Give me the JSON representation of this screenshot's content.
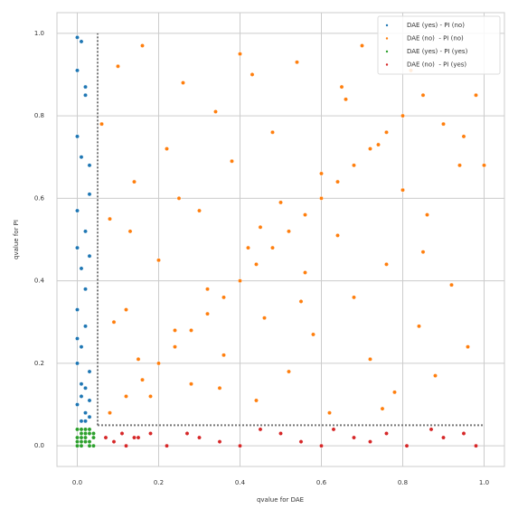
{
  "chart_data": {
    "type": "scatter",
    "xlabel": "qvalue for DAE",
    "ylabel": "qvalue for PI",
    "xlim": [
      -0.05,
      1.05
    ],
    "ylim": [
      -0.05,
      1.05
    ],
    "xticks": [
      {
        "value": 0,
        "label": "0.0"
      },
      0.2,
      0.4,
      0.6,
      0.8,
      {
        "value": 1,
        "label": "1.0"
      }
    ],
    "yticks": [
      {
        "value": 0,
        "label": "0.0"
      },
      0.2,
      0.4,
      0.6,
      0.8,
      {
        "value": 1,
        "label": "1.0"
      }
    ],
    "grid": true,
    "legend": "upper right",
    "threshold": 0.05,
    "series": [
      {
        "name": "DAE (yes) - PI (no)",
        "color": "#1f77b4",
        "x": [
          0.0,
          0.01,
          0.02,
          0.03,
          0.0,
          0.02,
          0.01,
          0.03,
          0.0,
          0.0,
          0.02,
          0.01,
          0.03,
          0.0,
          0.02,
          0.01,
          0.0,
          0.03,
          0.02,
          0.01,
          0.0,
          0.02,
          0.03,
          0.01,
          0.0,
          0.02,
          0.01,
          0.03,
          0.0,
          0.02
        ],
        "values": [
          0.99,
          0.98,
          0.87,
          0.68,
          0.91,
          0.85,
          0.7,
          0.61,
          0.75,
          0.57,
          0.52,
          0.43,
          0.46,
          0.33,
          0.29,
          0.24,
          0.2,
          0.18,
          0.14,
          0.12,
          0.1,
          0.08,
          0.07,
          0.06,
          0.26,
          0.38,
          0.15,
          0.11,
          0.48,
          0.06
        ]
      },
      {
        "name": "DAE (no)  - PI (no)",
        "color": "#ff7f0e",
        "x": [
          0.06,
          0.08,
          0.1,
          0.12,
          0.14,
          0.16,
          0.18,
          0.2,
          0.22,
          0.24,
          0.26,
          0.28,
          0.3,
          0.32,
          0.34,
          0.36,
          0.38,
          0.4,
          0.42,
          0.44,
          0.46,
          0.48,
          0.5,
          0.52,
          0.54,
          0.56,
          0.58,
          0.6,
          0.62,
          0.64,
          0.66,
          0.68,
          0.7,
          0.72,
          0.74,
          0.76,
          0.78,
          0.8,
          0.82,
          0.84,
          0.86,
          0.88,
          0.9,
          0.92,
          0.94,
          0.96,
          0.98,
          1.0,
          0.09,
          0.15,
          0.25,
          0.35,
          0.45,
          0.55,
          0.65,
          0.75,
          0.85,
          0.95,
          0.13,
          0.43,
          0.08,
          0.12,
          0.16,
          0.2,
          0.24,
          0.28,
          0.32,
          0.36,
          0.4,
          0.44,
          0.48,
          0.52,
          0.56,
          0.6,
          0.64,
          0.68,
          0.72,
          0.76,
          0.8,
          0.85
        ],
        "values": [
          0.78,
          0.55,
          0.92,
          0.33,
          0.64,
          0.97,
          0.12,
          0.45,
          0.72,
          0.28,
          0.88,
          0.15,
          0.57,
          0.38,
          0.81,
          0.22,
          0.69,
          0.95,
          0.48,
          0.11,
          0.31,
          0.76,
          0.59,
          0.18,
          0.93,
          0.42,
          0.27,
          0.66,
          0.08,
          0.51,
          0.84,
          0.36,
          0.97,
          0.21,
          0.73,
          0.44,
          0.13,
          0.62,
          0.91,
          0.29,
          0.56,
          0.17,
          0.78,
          0.39,
          0.68,
          0.24,
          0.85,
          0.68,
          0.3,
          0.21,
          0.6,
          0.14,
          0.53,
          0.35,
          0.87,
          0.09,
          0.47,
          0.75,
          0.52,
          0.9,
          0.08,
          0.12,
          0.16,
          0.2,
          0.24,
          0.28,
          0.32,
          0.36,
          0.4,
          0.44,
          0.48,
          0.52,
          0.56,
          0.6,
          0.64,
          0.68,
          0.72,
          0.76,
          0.8,
          0.85
        ]
      },
      {
        "name": "DAE (yes) - PI (yes)",
        "color": "#2ca02c",
        "x": [
          0,
          0.01,
          0.02,
          0.03,
          0.04,
          0.0,
          0.01,
          0.02,
          0.03,
          0.04,
          0.0,
          0.01,
          0.02,
          0.03,
          0.01,
          0.02,
          0.0,
          0.03,
          0.04,
          0.01
        ],
        "values": [
          0.0,
          0.01,
          0.02,
          0.0,
          0.03,
          0.04,
          0.03,
          0.01,
          0.04,
          0.02,
          0.02,
          0.0,
          0.04,
          0.01,
          0.02,
          0.03,
          0.01,
          0.03,
          0.0,
          0.04
        ]
      },
      {
        "name": "DAE (no)  - PI (yes)",
        "color": "#d62728",
        "x": [
          0.07,
          0.09,
          0.12,
          0.15,
          0.18,
          0.22,
          0.27,
          0.3,
          0.35,
          0.4,
          0.45,
          0.5,
          0.55,
          0.6,
          0.63,
          0.68,
          0.72,
          0.76,
          0.81,
          0.87,
          0.9,
          0.95,
          0.98,
          0.11,
          0.14
        ],
        "values": [
          0.02,
          0.01,
          0.0,
          0.02,
          0.03,
          0.0,
          0.03,
          0.02,
          0.01,
          0.0,
          0.04,
          0.03,
          0.01,
          0.0,
          0.04,
          0.02,
          0.01,
          0.03,
          0.0,
          0.04,
          0.02,
          0.03,
          0.0,
          0.03,
          0.02
        ]
      }
    ]
  }
}
